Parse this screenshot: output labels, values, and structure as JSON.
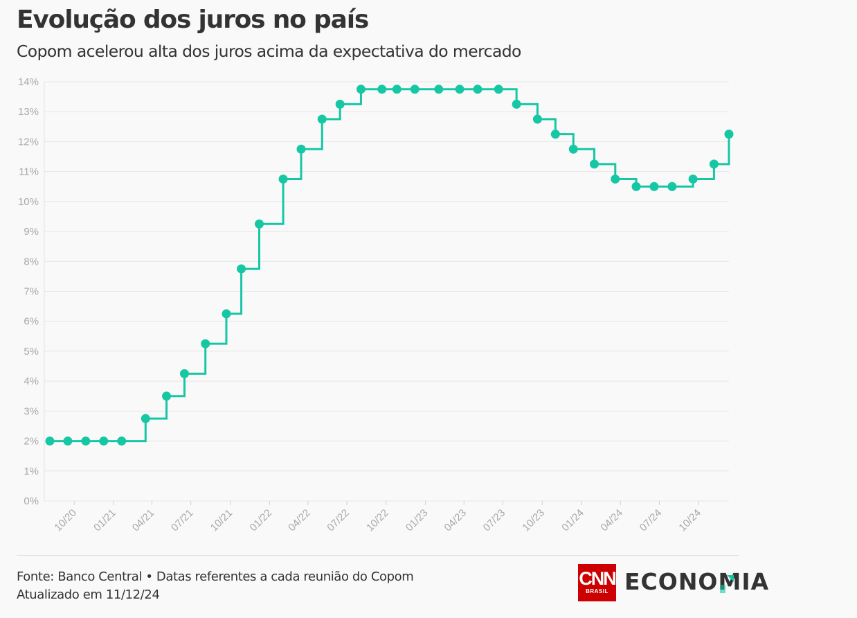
{
  "header": {
    "title": "Evolução dos juros no país",
    "subtitle": "Copom acelerou alta dos juros acima da expectativa do mercado"
  },
  "footer": {
    "source": "Fonte: Banco Central • Datas referentes a cada reunião do Copom",
    "updated": "Atualizado em 11/12/24"
  },
  "logo": {
    "brand": "CNN",
    "brand_sub": "BRASIL",
    "section": "ECONOMIA",
    "brand_color": "#cc0000",
    "accent_color": "#16c7a4"
  },
  "chart_data": {
    "type": "line",
    "step": "after",
    "title": "Evolução dos juros no país",
    "subtitle": "Copom acelerou alta dos juros acima da expectativa do mercado",
    "xlabel": "",
    "ylabel": "",
    "ylim": [
      0,
      14
    ],
    "y_ticks": [
      "0%",
      "1%",
      "2%",
      "3%",
      "4%",
      "5%",
      "6%",
      "7%",
      "8%",
      "9%",
      "10%",
      "11%",
      "12%",
      "13%",
      "14%"
    ],
    "x_ticks": [
      "10/20",
      "01/21",
      "04/21",
      "07/21",
      "10/21",
      "01/22",
      "04/22",
      "07/22",
      "10/22",
      "01/23",
      "04/23",
      "07/23",
      "10/23",
      "01/24",
      "04/24",
      "07/24",
      "10/24"
    ],
    "grid": true,
    "legend": "none",
    "series_color": "#16c7a4",
    "series": [
      {
        "x": [
          "2020-08-05",
          "2020-09-16",
          "2020-10-28",
          "2020-12-09",
          "2021-01-20",
          "2021-03-17",
          "2021-05-05",
          "2021-06-16",
          "2021-08-04",
          "2021-09-22",
          "2021-10-27",
          "2021-12-08",
          "2022-02-02",
          "2022-03-16",
          "2022-05-04",
          "2022-06-15",
          "2022-08-03",
          "2022-09-21",
          "2022-10-26",
          "2022-12-07",
          "2023-02-01",
          "2023-03-22",
          "2023-05-03",
          "2023-06-21",
          "2023-08-02",
          "2023-09-20",
          "2023-11-01",
          "2023-12-13",
          "2024-01-31",
          "2024-03-20",
          "2024-05-08",
          "2024-06-19",
          "2024-07-31",
          "2024-09-18",
          "2024-11-06",
          "2024-12-11"
        ],
        "values": [
          2.0,
          2.0,
          2.0,
          2.0,
          2.0,
          2.75,
          3.5,
          4.25,
          5.25,
          6.25,
          7.75,
          9.25,
          10.75,
          11.75,
          12.75,
          13.25,
          13.75,
          13.75,
          13.75,
          13.75,
          13.75,
          13.75,
          13.75,
          13.75,
          13.25,
          12.75,
          12.25,
          11.75,
          11.25,
          10.75,
          10.5,
          10.5,
          10.5,
          10.75,
          11.25,
          12.25
        ]
      }
    ]
  }
}
